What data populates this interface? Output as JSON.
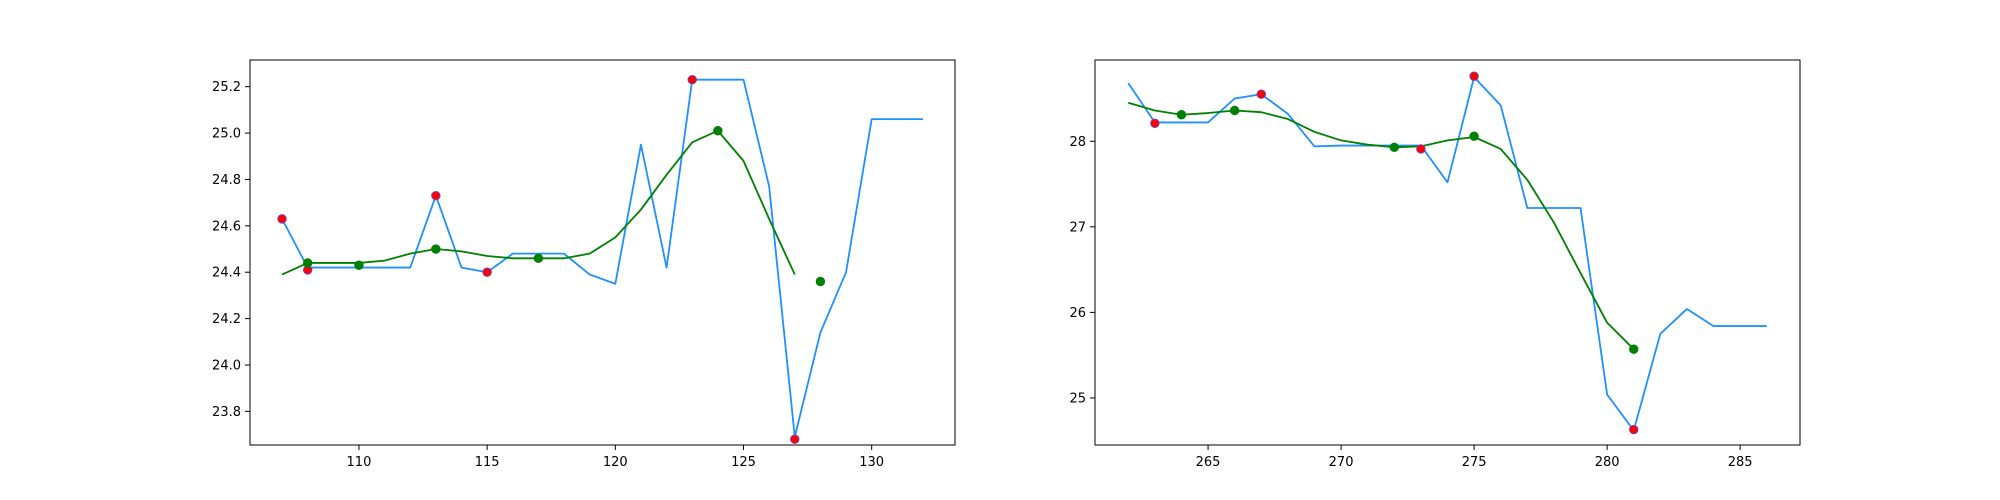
{
  "chart_data": [
    {
      "type": "line",
      "title": "",
      "xlabel": "",
      "ylabel": "",
      "xlim": [
        105.75,
        133.25
      ],
      "ylim": [
        23.655,
        25.315
      ],
      "xticks": [
        110,
        115,
        120,
        125,
        130
      ],
      "yticks": [
        23.8,
        24.0,
        24.2,
        24.4,
        24.6,
        24.8,
        25.0,
        25.2
      ],
      "ytick_decimals": 1,
      "grid": false,
      "legend": "none",
      "series": [
        {
          "kind": "line",
          "color": "#1e90ff",
          "x": [
            107,
            108,
            109,
            110,
            111,
            112,
            113,
            114,
            115,
            116,
            117,
            118,
            119,
            120,
            121,
            122,
            123,
            124,
            125,
            126,
            127,
            128,
            129,
            130,
            131,
            132
          ],
          "y": [
            24.63,
            24.42,
            24.42,
            24.42,
            24.42,
            24.42,
            24.73,
            24.42,
            24.4,
            24.48,
            24.48,
            24.48,
            24.39,
            24.35,
            24.95,
            24.42,
            25.23,
            25.23,
            25.23,
            24.77,
            23.69,
            24.14,
            24.4,
            25.06,
            25.06,
            25.06
          ]
        },
        {
          "kind": "line",
          "color": "#008000",
          "x": [
            107,
            108,
            109,
            110,
            111,
            112,
            113,
            114,
            115,
            116,
            117,
            118,
            119,
            120,
            121,
            122,
            123,
            124,
            125,
            126,
            127
          ],
          "y": [
            24.39,
            24.44,
            24.44,
            24.44,
            24.45,
            24.48,
            24.5,
            24.49,
            24.47,
            24.46,
            24.46,
            24.46,
            24.48,
            24.55,
            24.67,
            24.82,
            24.96,
            25.01,
            24.88,
            24.63,
            24.39
          ]
        },
        {
          "kind": "scatter",
          "color": "#ff0000",
          "edge": "#7a3fb0",
          "x": [
            107,
            108,
            113,
            115,
            123,
            127
          ],
          "y": [
            24.63,
            24.41,
            24.73,
            24.4,
            25.23,
            23.68
          ]
        },
        {
          "kind": "scatter",
          "color": "#008000",
          "edge": "#008000",
          "x": [
            108,
            110,
            113,
            117,
            124,
            128
          ],
          "y": [
            24.44,
            24.43,
            24.5,
            24.46,
            25.01,
            24.36
          ]
        }
      ]
    },
    {
      "type": "line",
      "title": "",
      "xlabel": "",
      "ylabel": "",
      "xlim": [
        260.75,
        287.25
      ],
      "ylim": [
        24.45,
        28.95
      ],
      "xticks": [
        265,
        270,
        275,
        280,
        285
      ],
      "yticks": [
        25,
        26,
        27,
        28
      ],
      "ytick_decimals": 0,
      "grid": false,
      "legend": "none",
      "series": [
        {
          "kind": "line",
          "color": "#1e90ff",
          "x": [
            262,
            263,
            264,
            265,
            266,
            267,
            268,
            269,
            270,
            271,
            272,
            273,
            274,
            275,
            276,
            277,
            278,
            279,
            280,
            281,
            282,
            283,
            284,
            285,
            286
          ],
          "y": [
            28.68,
            28.22,
            28.22,
            28.22,
            28.5,
            28.55,
            28.32,
            27.94,
            27.95,
            27.95,
            27.95,
            27.95,
            27.52,
            28.75,
            28.42,
            27.22,
            27.22,
            27.22,
            25.04,
            24.62,
            25.75,
            26.04,
            25.84,
            25.84,
            25.84
          ]
        },
        {
          "kind": "line",
          "color": "#008000",
          "x": [
            262,
            263,
            264,
            265,
            266,
            267,
            268,
            269,
            270,
            271,
            272,
            273,
            274,
            275,
            276,
            277,
            278,
            279,
            280,
            281
          ],
          "y": [
            28.45,
            28.36,
            28.31,
            28.33,
            28.36,
            28.34,
            28.26,
            28.11,
            28.01,
            27.96,
            27.93,
            27.94,
            28.01,
            28.05,
            27.91,
            27.55,
            27.05,
            26.46,
            25.88,
            25.57
          ]
        },
        {
          "kind": "scatter",
          "color": "#ff0000",
          "edge": "#7a3fb0",
          "x": [
            263,
            267,
            273,
            275,
            281
          ],
          "y": [
            28.21,
            28.55,
            27.91,
            28.76,
            24.63
          ]
        },
        {
          "kind": "scatter",
          "color": "#008000",
          "edge": "#008000",
          "x": [
            264,
            266,
            272,
            275,
            281
          ],
          "y": [
            28.31,
            28.36,
            27.93,
            28.06,
            25.57
          ]
        }
      ]
    }
  ]
}
